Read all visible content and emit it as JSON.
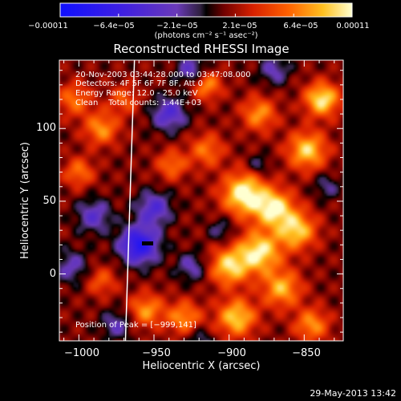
{
  "chart_data": {
    "type": "heatmap",
    "title": "Reconstructed RHESSI Image",
    "xlabel": "Heliocentric X (arcsec)",
    "ylabel": "Heliocentric Y (arcsec)",
    "xlim": [
      -1013,
      -824
    ],
    "ylim": [
      -46,
      147
    ],
    "x_ticks": [
      -1000,
      -950,
      -900,
      -850
    ],
    "x_tick_labels": [
      "−1000",
      "−950",
      "−900",
      "−850"
    ],
    "y_ticks": [
      0,
      50,
      100
    ],
    "y_tick_labels": [
      "0",
      "50",
      "100"
    ],
    "colorbar": {
      "vmin": -0.00011,
      "vmax": 0.00011,
      "tick_labels": [
        "−0.00011",
        "−6.4e−05",
        "−2.1e−05",
        "2.1e−05",
        "6.4e−05",
        "0.00011"
      ],
      "units": "(photons cm⁻² s⁻¹ asec⁻²)"
    },
    "annotations": {
      "time_range": "20-Nov-2003 03:44:28.000 to 03:47:08.000",
      "detectors": "Detectors: 4F 5F 6F 7F 8F, Att 0",
      "energy_range": "Energy Range: 12.0 - 25.0 keV",
      "method_counts": "Clean    Total counts: 1.44E+03",
      "peak": "Position of Peak = [−999,141]"
    },
    "limb_line": [
      [
        -969,
        -46
      ],
      [
        -963,
        147
      ]
    ],
    "blobs": [
      {
        "x": -890,
        "y": 55,
        "v": 0.0001,
        "s": 10
      },
      {
        "x": -870,
        "y": 45,
        "v": 9e-05,
        "s": 9
      },
      {
        "x": -855,
        "y": 30,
        "v": 8e-05,
        "s": 9
      },
      {
        "x": -880,
        "y": 15,
        "v": 9e-05,
        "s": 10
      },
      {
        "x": -900,
        "y": 5,
        "v": 8e-05,
        "s": 9
      },
      {
        "x": -865,
        "y": -10,
        "v": 7e-05,
        "s": 9
      },
      {
        "x": -895,
        "y": -30,
        "v": 8e-05,
        "s": 9
      },
      {
        "x": -845,
        "y": -35,
        "v": 6e-05,
        "s": 8
      },
      {
        "x": -848,
        "y": 85,
        "v": 8e-05,
        "s": 9
      },
      {
        "x": -838,
        "y": 120,
        "v": 9e-05,
        "s": 8
      },
      {
        "x": -880,
        "y": 110,
        "v": 6e-05,
        "s": 8
      },
      {
        "x": -915,
        "y": 85,
        "v": 5e-05,
        "s": 8
      },
      {
        "x": -915,
        "y": 130,
        "v": 6e-05,
        "s": 7
      },
      {
        "x": -938,
        "y": 75,
        "v": 5e-05,
        "s": 7
      },
      {
        "x": -985,
        "y": 100,
        "v": 6e-05,
        "s": 8
      },
      {
        "x": -1003,
        "y": 120,
        "v": 5e-05,
        "s": 8
      },
      {
        "x": -1000,
        "y": 70,
        "v": 5e-05,
        "s": 7
      },
      {
        "x": -970,
        "y": 120,
        "v": 4e-05,
        "s": 7
      },
      {
        "x": -955,
        "y": -25,
        "v": 6e-05,
        "s": 8
      },
      {
        "x": -930,
        "y": -30,
        "v": 6e-05,
        "s": 8
      },
      {
        "x": -985,
        "y": -5,
        "v": 4e-05,
        "s": 7
      },
      {
        "x": -960,
        "y": 20,
        "v": -0.0001,
        "s": 9
      },
      {
        "x": -950,
        "y": 45,
        "v": -6e-05,
        "s": 8
      },
      {
        "x": -940,
        "y": 110,
        "v": -6e-05,
        "s": 8
      },
      {
        "x": -925,
        "y": 140,
        "v": -5e-05,
        "s": 7
      },
      {
        "x": -990,
        "y": 40,
        "v": -5e-05,
        "s": 8
      },
      {
        "x": -1005,
        "y": 5,
        "v": -4e-05,
        "s": 8
      },
      {
        "x": -975,
        "y": -35,
        "v": -4e-05,
        "s": 7
      },
      {
        "x": -925,
        "y": 5,
        "v": -4e-05,
        "s": 7
      },
      {
        "x": -905,
        "y": 30,
        "v": -3e-05,
        "s": 6
      },
      {
        "x": -870,
        "y": 140,
        "v": -4e-05,
        "s": 7
      },
      {
        "x": -835,
        "y": 60,
        "v": -3e-05,
        "s": 6
      },
      {
        "x": -880,
        "y": 75,
        "v": -3e-05,
        "s": 5
      },
      {
        "x": -920,
        "y": -45,
        "v": -3e-05,
        "s": 6
      }
    ]
  },
  "footer": {
    "date": "29-May-2013 13:42"
  }
}
